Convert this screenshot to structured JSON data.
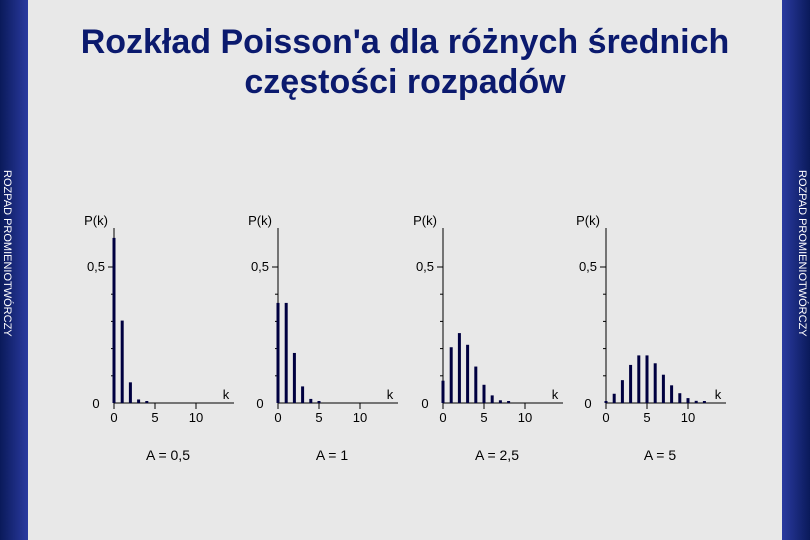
{
  "title": {
    "line1": "Rozkład Poisson'a dla różnych średnich",
    "line2": "częstości rozpadów"
  },
  "side_labels": {
    "left": "ROZPAD PROMIENIOTWÓRCZY",
    "right": "ROZPAD PROMIENIOTWÓRCZY"
  },
  "colors": {
    "title": "#0b1a6e",
    "sidebar": "#1a2a8a",
    "background": "#e8e8e8",
    "bars": "#000040"
  },
  "chart_data": [
    {
      "type": "bar",
      "ylabel": "P(k)",
      "xlabel": "k",
      "caption": "A = 0,5",
      "x": [
        0,
        1,
        2,
        3,
        4
      ],
      "values": [
        0.607,
        0.303,
        0.076,
        0.013,
        0.002
      ],
      "xticks": [
        "0",
        "5",
        "10"
      ],
      "yticks": [
        "0",
        "0,5"
      ],
      "ylim": [
        0,
        0.65
      ],
      "xlim": [
        0,
        12
      ]
    },
    {
      "type": "bar",
      "ylabel": "P(k)",
      "xlabel": "k",
      "caption": "A = 1",
      "x": [
        0,
        1,
        2,
        3,
        4,
        5
      ],
      "values": [
        0.368,
        0.368,
        0.184,
        0.061,
        0.015,
        0.003
      ],
      "xticks": [
        "0",
        "5",
        "10"
      ],
      "yticks": [
        "0",
        "0,5"
      ],
      "ylim": [
        0,
        0.65
      ],
      "xlim": [
        0,
        12
      ]
    },
    {
      "type": "bar",
      "ylabel": "P(k)",
      "xlabel": "k",
      "caption": "A = 2,5",
      "x": [
        0,
        1,
        2,
        3,
        4,
        5,
        6,
        7,
        8
      ],
      "values": [
        0.082,
        0.205,
        0.257,
        0.214,
        0.134,
        0.067,
        0.028,
        0.01,
        0.003
      ],
      "xticks": [
        "0",
        "5",
        "10"
      ],
      "yticks": [
        "0",
        "0,5"
      ],
      "ylim": [
        0,
        0.65
      ],
      "xlim": [
        0,
        12
      ]
    },
    {
      "type": "bar",
      "ylabel": "P(k)",
      "xlabel": "k",
      "caption": "A = 5",
      "x": [
        0,
        1,
        2,
        3,
        4,
        5,
        6,
        7,
        8,
        9,
        10,
        11,
        12
      ],
      "values": [
        0.007,
        0.034,
        0.084,
        0.14,
        0.175,
        0.175,
        0.146,
        0.104,
        0.065,
        0.036,
        0.018,
        0.008,
        0.003
      ],
      "xticks": [
        "0",
        "5",
        "10"
      ],
      "yticks": [
        "0",
        "0,5"
      ],
      "ylim": [
        0,
        0.65
      ],
      "xlim": [
        0,
        12
      ]
    }
  ]
}
